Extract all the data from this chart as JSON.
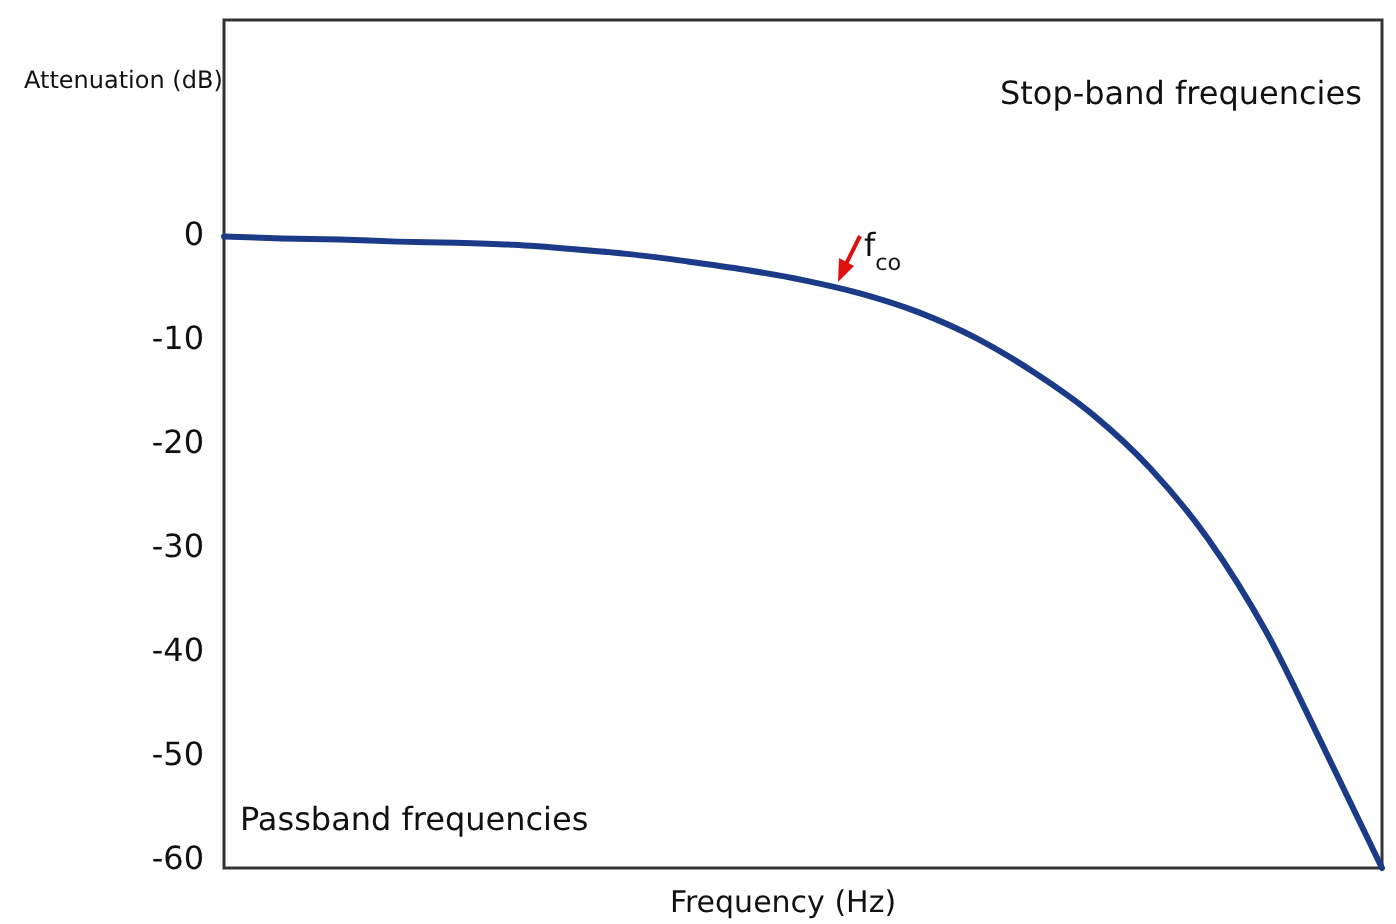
{
  "chart_data": {
    "type": "line",
    "xlabel": "Frequency (Hz)",
    "ylabel": "Attenuation (dB)",
    "categories": [
      null,
      null,
      null,
      null,
      null,
      null,
      null,
      null,
      null,
      null,
      null,
      null,
      null,
      null,
      null,
      null,
      null,
      null,
      null,
      null,
      null
    ],
    "series": [
      {
        "color": "#1b3a87",
        "values": [
          -0.3,
          -0.5,
          -0.6,
          -0.8,
          -0.9,
          -1.1,
          -1.5,
          -2.0,
          -2.7,
          -3.5,
          -4.5,
          -5.8,
          -7.6,
          -10.1,
          -13.4,
          -17.4,
          -22.6,
          -29.4,
          -38.3,
          -49.5,
          -61
        ]
      }
    ],
    "ylim": [
      -61,
      20.5
    ],
    "yticks": [
      0,
      -10,
      -20,
      -30,
      -40,
      -50,
      -60
    ],
    "annotations": [
      "Stop-band frequencies",
      "Passband frequencies",
      "f$_{co}$"
    ],
    "grid": false,
    "marker": "none",
    "line_style": "solid"
  }
}
